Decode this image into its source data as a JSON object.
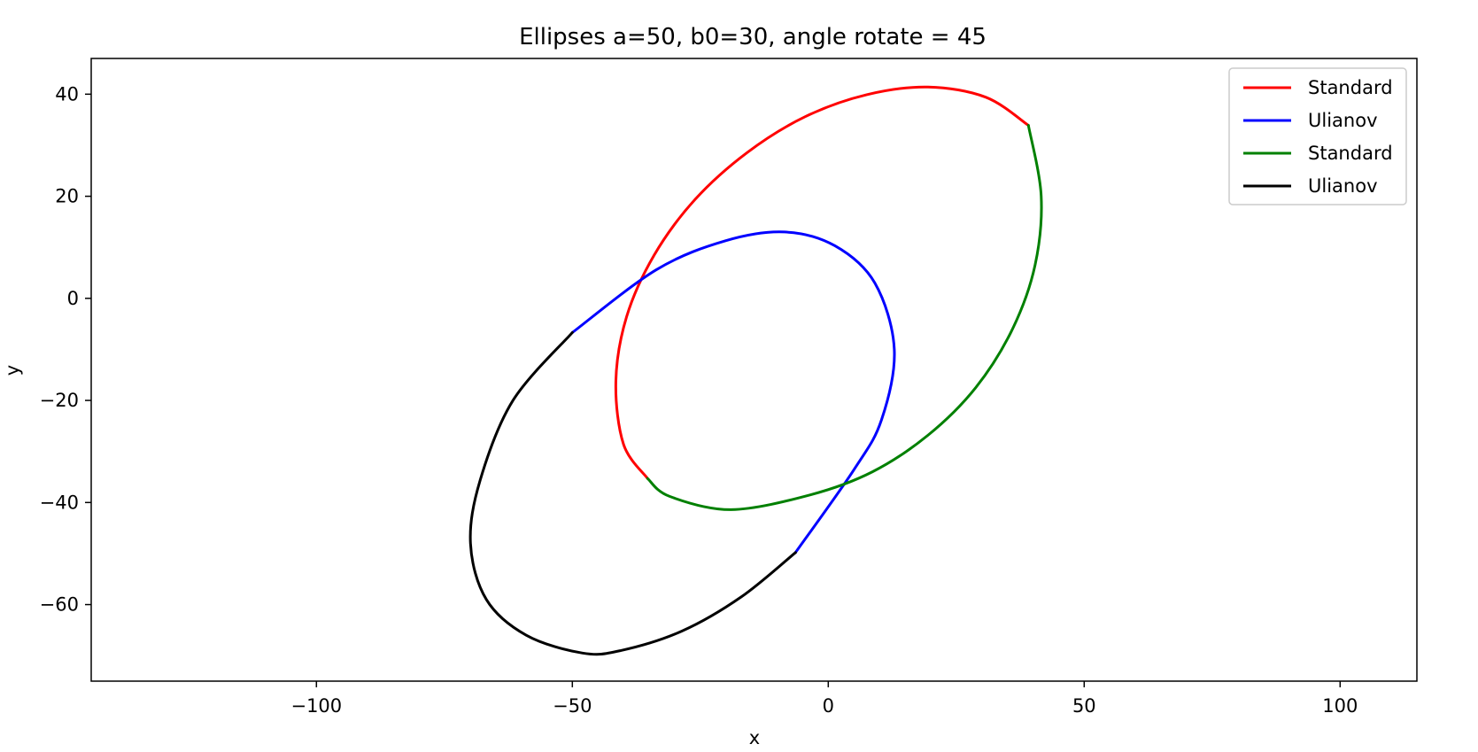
{
  "chart_data": {
    "type": "line",
    "title": "Ellipses a=50, b0=30, angle rotate = 45",
    "xlabel": "x",
    "ylabel": "y",
    "xlim": [
      -144,
      115
    ],
    "ylim": [
      -75,
      47
    ],
    "xticks": [
      -100,
      -50,
      0,
      50,
      100
    ],
    "yticks": [
      -60,
      -40,
      -20,
      0,
      20,
      40
    ],
    "xtick_labels": [
      "−100",
      "−50",
      "0",
      "50",
      "100"
    ],
    "ytick_labels": [
      "−60",
      "−40",
      "−20",
      "0",
      "20",
      "40"
    ],
    "grid": false,
    "legend_position": "top-right",
    "series": [
      {
        "name": "Standard",
        "color": "#ff0000",
        "x": [
          39.1,
          30.8,
          19.5,
          7.5,
          -4.5,
          -15.8,
          -26.0,
          -34.0,
          -39.4,
          -41.5,
          -40.0,
          -35.3
        ],
        "y": [
          33.9,
          39.4,
          41.4,
          39.9,
          35.6,
          28.6,
          19.4,
          8.5,
          -3.6,
          -16.3,
          -28.6,
          -35.3
        ]
      },
      {
        "name": "Ulianov",
        "color": "#0000ff",
        "x": [
          -50.0,
          -33.6,
          -20.0,
          -8.5,
          1.3,
          9.1,
          12.9,
          10.4,
          5.0,
          -6.4
        ],
        "y": [
          -6.7,
          5.6,
          11.3,
          13.0,
          10.3,
          3.0,
          -10.0,
          -23.8,
          -33.6,
          -49.8
        ]
      },
      {
        "name": "Standard",
        "color": "#008000",
        "x": [
          39.1,
          41.6,
          40.4,
          36.0,
          28.8,
          19.5,
          8.6,
          -3.5,
          -19.0,
          -31.0,
          -35.3
        ],
        "y": [
          33.9,
          20.0,
          6.5,
          -6.0,
          -17.5,
          -26.8,
          -34.0,
          -38.5,
          -41.4,
          -38.8,
          -35.3
        ]
      },
      {
        "name": "Ulianov",
        "color": "#000000",
        "x": [
          -6.4,
          -17.0,
          -28.6,
          -40.5,
          -48.0,
          -59.0,
          -66.8,
          -69.9,
          -68.0,
          -61.6,
          -50.0
        ],
        "y": [
          -49.8,
          -58.5,
          -65.2,
          -69.0,
          -69.5,
          -66.0,
          -59.0,
          -48.0,
          -35.6,
          -20.0,
          -6.7
        ]
      }
    ]
  }
}
